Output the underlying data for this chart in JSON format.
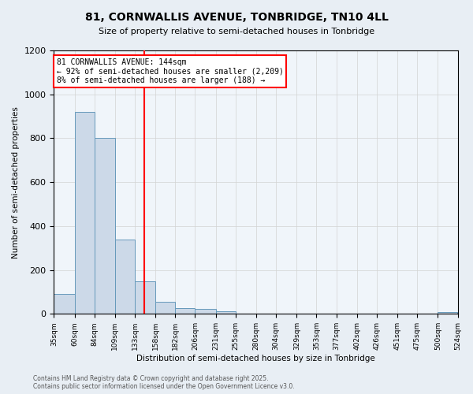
{
  "title": "81, CORNWALLIS AVENUE, TONBRIDGE, TN10 4LL",
  "subtitle": "Size of property relative to semi-detached houses in Tonbridge",
  "xlabel": "Distribution of semi-detached houses by size in Tonbridge",
  "ylabel": "Number of semi-detached properties",
  "bar_edges": [
    35,
    60,
    84,
    109,
    133,
    158,
    182,
    206,
    231,
    255,
    280,
    304,
    329,
    353,
    377,
    402,
    426,
    451,
    475,
    500,
    524
  ],
  "bar_heights": [
    90,
    920,
    800,
    340,
    150,
    55,
    25,
    22,
    12,
    0,
    0,
    0,
    0,
    0,
    0,
    0,
    0,
    0,
    0,
    8
  ],
  "bar_color": "#ccd9e8",
  "bar_edge_color": "#6699bb",
  "property_line_x": 144,
  "property_line_color": "red",
  "annotation_text": "81 CORNWALLIS AVENUE: 144sqm\n← 92% of semi-detached houses are smaller (2,209)\n8% of semi-detached houses are larger (188) →",
  "ylim": [
    0,
    1200
  ],
  "yticks": [
    0,
    200,
    400,
    600,
    800,
    1000,
    1200
  ],
  "tick_labels": [
    "35sqm",
    "60sqm",
    "84sqm",
    "109sqm",
    "133sqm",
    "158sqm",
    "182sqm",
    "206sqm",
    "231sqm",
    "255sqm",
    "280sqm",
    "304sqm",
    "329sqm",
    "353sqm",
    "377sqm",
    "402sqm",
    "426sqm",
    "451sqm",
    "475sqm",
    "500sqm",
    "524sqm"
  ],
  "footer": "Contains HM Land Registry data © Crown copyright and database right 2025.\nContains public sector information licensed under the Open Government Licence v3.0.",
  "bg_color": "#e8eef4",
  "plot_bg_color": "#f0f5fa"
}
